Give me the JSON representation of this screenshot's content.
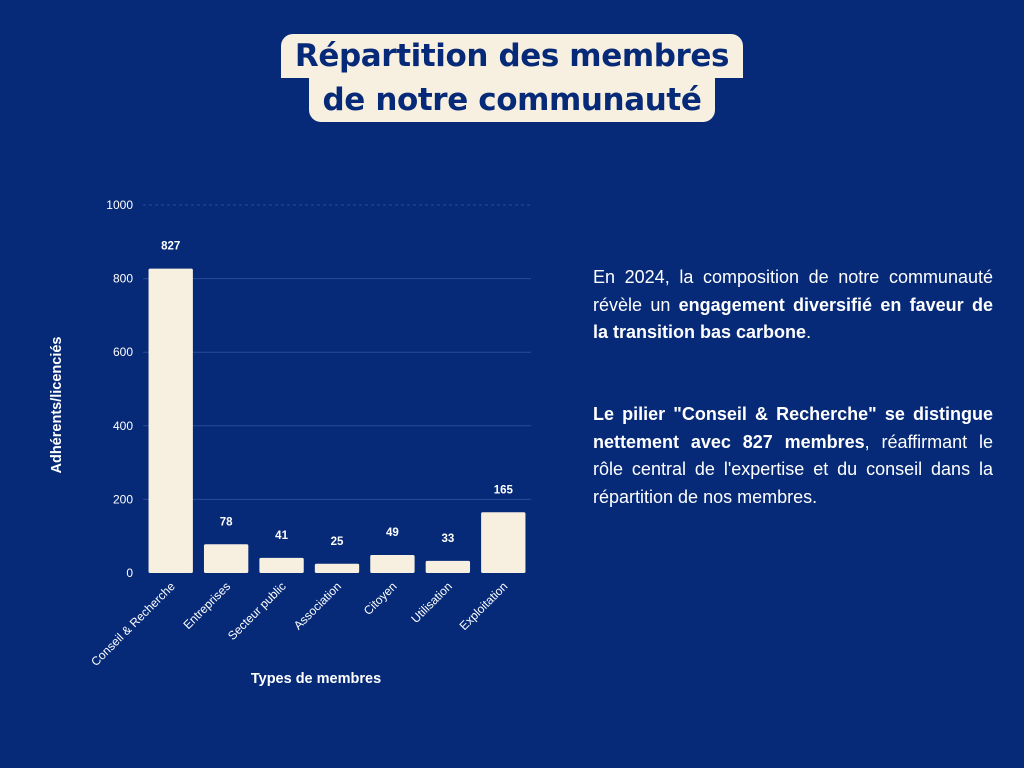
{
  "title": {
    "line1": "Répartition des membres",
    "line2": "de notre communauté"
  },
  "colors": {
    "background": "#062a78",
    "accent": "#f7f0e1",
    "gridline": "#2a4a96"
  },
  "chart_data": {
    "type": "bar",
    "categories": [
      "Conseil & Recherche",
      "Entreprises",
      "Secteur public",
      "Association",
      "Citoyen",
      "Utilisation",
      "Exploitation"
    ],
    "values": [
      827,
      78,
      41,
      25,
      49,
      33,
      165
    ],
    "data_labels": [
      "827",
      "78",
      "41",
      "25",
      "49",
      "33",
      "165"
    ],
    "xlabel": "Types de membres",
    "ylabel": "Adhérents/licenciés",
    "ylim": [
      0,
      1000
    ],
    "yticks": [
      0,
      200,
      400,
      600,
      800,
      1000
    ],
    "ytick_labels": [
      "0",
      "200",
      "400",
      "600",
      "800",
      "1000"
    ],
    "grid": true,
    "legend": "none"
  },
  "text": {
    "p1": {
      "a": "En 2024, la composition de notre communauté révèle un ",
      "b": "engagement diversifié en faveur de la transition bas carbone",
      "c": "."
    },
    "p2": {
      "a": "Le pilier \"Conseil & Recherche\" se distingue nettement avec 827 membres",
      "b": ", réaffirmant le rôle central de l'expertise et du conseil dans la répartition de nos membres."
    }
  }
}
